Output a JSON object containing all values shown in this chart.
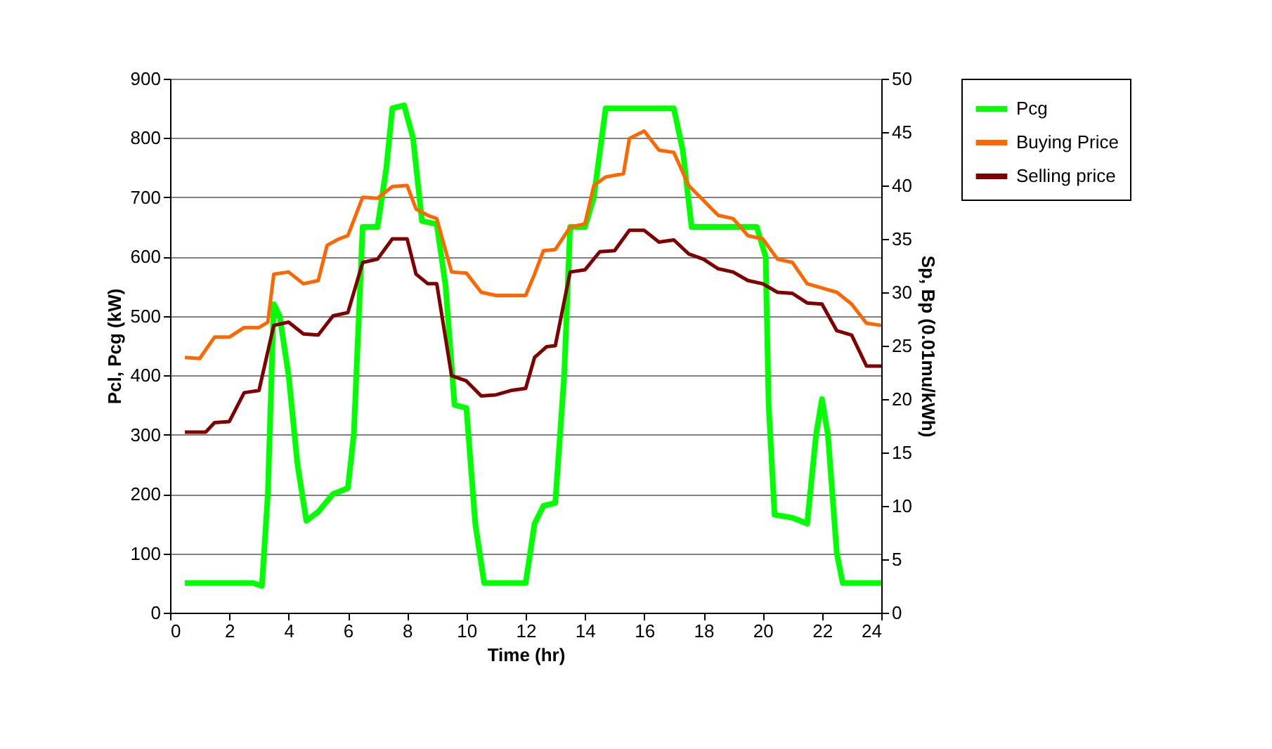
{
  "chart_data": {
    "type": "line",
    "xlabel": "Time (hr)",
    "ylabel": "Pcl, Pcg (kW)",
    "y2label": "Sp, Bp (0.01mu/kWh)",
    "xlim": [
      0,
      24
    ],
    "xticks": [
      0,
      2,
      4,
      6,
      8,
      10,
      12,
      14,
      16,
      18,
      20,
      22,
      24
    ],
    "ylim": [
      0,
      900
    ],
    "yticks": [
      0,
      100,
      200,
      300,
      400,
      500,
      600,
      700,
      800,
      900
    ],
    "y2lim": [
      0,
      50
    ],
    "y2ticks": [
      0,
      5,
      10,
      15,
      20,
      25,
      30,
      35,
      40,
      45,
      50
    ],
    "grid": "y",
    "legend": "right",
    "line_style": "solid",
    "series": [
      {
        "name": "Pcg",
        "color": "#00ff00",
        "x": [
          0.5,
          2.8,
          3.1,
          3.3,
          3.5,
          3.7,
          4.0,
          4.3,
          4.6,
          5.0,
          5.5,
          6.0,
          6.2,
          6.5,
          7.0,
          7.3,
          7.5,
          7.9,
          8.2,
          8.5,
          9.0,
          9.3,
          9.6,
          10.0,
          10.3,
          10.6,
          11.0,
          12.0,
          12.3,
          12.6,
          13.0,
          13.3,
          13.5,
          14.0,
          14.3,
          14.7,
          15.0,
          17.0,
          17.3,
          17.6,
          18.0,
          19.8,
          20.1,
          20.2,
          20.4,
          21.0,
          21.5,
          21.8,
          22.0,
          22.2,
          22.5,
          22.7,
          24.0
        ],
        "values": [
          50,
          50,
          45,
          200,
          520,
          500,
          400,
          250,
          155,
          170,
          200,
          210,
          300,
          650,
          650,
          750,
          850,
          855,
          800,
          660,
          655,
          550,
          350,
          345,
          150,
          50,
          50,
          50,
          150,
          180,
          185,
          400,
          650,
          650,
          700,
          850,
          850,
          850,
          780,
          650,
          650,
          650,
          600,
          350,
          165,
          160,
          150,
          300,
          360,
          300,
          100,
          50,
          50
        ]
      },
      {
        "name": "Buying Price",
        "color": "#ff6600",
        "axis": "y2",
        "x": [
          0.5,
          1,
          1.5,
          2,
          2.5,
          3,
          3.3,
          3.5,
          4,
          4.5,
          5,
          5.3,
          5.7,
          6,
          6.5,
          7,
          7.5,
          8,
          8.3,
          8.7,
          9,
          9.5,
          10,
          10.5,
          11,
          12,
          12.3,
          12.6,
          13,
          13.5,
          14,
          14.3,
          14.7,
          15.3,
          15.5,
          16,
          16.5,
          17,
          17.5,
          18,
          18.5,
          19,
          19.5,
          20,
          20.5,
          21,
          21.5,
          22,
          22.5,
          23,
          23.5,
          24
        ],
        "values": [
          23.9,
          23.8,
          25.8,
          25.8,
          26.7,
          26.7,
          27.2,
          31.7,
          31.9,
          30.8,
          31.1,
          34.4,
          35,
          35.3,
          38.9,
          38.8,
          39.9,
          40,
          37.8,
          37.2,
          36.9,
          31.9,
          31.8,
          30,
          29.7,
          29.7,
          31.7,
          33.9,
          34,
          36.1,
          36.4,
          40,
          40.8,
          41.1,
          44.4,
          45.1,
          43.3,
          43.1,
          40,
          38.6,
          37.2,
          36.9,
          35.3,
          35,
          33.1,
          32.8,
          30.8,
          30.4,
          30,
          28.9,
          27.1,
          26.9
        ]
      },
      {
        "name": "Selling price",
        "color": "#800000",
        "axis": "y2",
        "x": [
          0.5,
          1.2,
          1.5,
          2,
          2.5,
          3,
          3.5,
          4,
          4.5,
          5,
          5.5,
          6,
          6.5,
          7,
          7.5,
          8,
          8.3,
          8.7,
          9,
          9.5,
          10,
          10.5,
          11,
          11.5,
          12,
          12.3,
          12.7,
          13,
          13.5,
          14,
          14.5,
          15,
          15.5,
          16,
          16.5,
          17,
          17.5,
          18,
          18.5,
          19,
          19.5,
          20,
          20.5,
          21,
          21.5,
          22,
          22.5,
          23,
          23.5,
          24
        ],
        "values": [
          16.9,
          16.9,
          17.8,
          17.9,
          20.6,
          20.8,
          26.9,
          27.2,
          26.1,
          26,
          27.8,
          28.1,
          32.8,
          33.1,
          35,
          35,
          31.7,
          30.8,
          30.8,
          22.2,
          21.7,
          20.3,
          20.4,
          20.8,
          21,
          23.9,
          24.9,
          25,
          31.9,
          32.1,
          33.8,
          33.9,
          35.8,
          35.8,
          34.7,
          34.9,
          33.6,
          33.1,
          32.2,
          31.9,
          31.1,
          30.8,
          30,
          29.9,
          29,
          28.9,
          26.4,
          26,
          23.1,
          23.1
        ]
      }
    ]
  }
}
